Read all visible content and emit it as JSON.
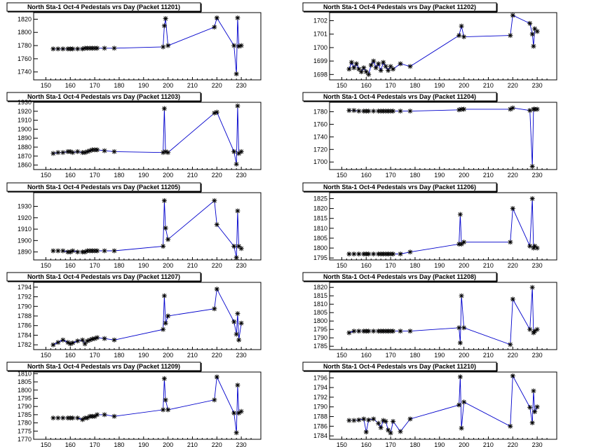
{
  "page": {
    "title": "North Sta-1 Oct-4 Pedestals vrs Day"
  },
  "colors": {
    "line": "#0000cc",
    "marker": "#000000",
    "axis": "#000000",
    "frame": "#000000"
  },
  "chart_data": [
    {
      "type": "line",
      "title": "North Sta-1 Oct-4 Pedestals vrs Day (Packet 11201)",
      "xlabel": "",
      "ylabel": "",
      "xlim": [
        145,
        238
      ],
      "ylim": [
        1728,
        1830
      ],
      "xticks": [
        150,
        160,
        170,
        180,
        190,
        200,
        210,
        220,
        230
      ],
      "yticks": [
        1740,
        1760,
        1780,
        1800,
        1820
      ],
      "series": [
        {
          "name": "pedestal",
          "x": [
            153,
            155,
            157,
            159,
            160,
            161,
            163,
            165,
            166,
            167,
            168,
            169,
            170,
            171,
            174,
            178,
            198,
            198.5,
            199,
            200,
            219,
            220,
            227,
            228,
            228.5,
            229,
            230
          ],
          "y": [
            1775,
            1775,
            1775,
            1775,
            1775,
            1775,
            1775,
            1775,
            1776,
            1776,
            1776,
            1776,
            1776,
            1776,
            1776,
            1776,
            1778,
            1810,
            1821,
            1780,
            1808,
            1822,
            1780,
            1737,
            1822,
            1779,
            1780
          ]
        }
      ]
    },
    {
      "type": "line",
      "title": "North Sta-1 Oct-4 Pedestals vrs Day (Packet 11202)",
      "xlabel": "",
      "ylabel": "",
      "xlim": [
        145,
        238
      ],
      "ylim": [
        1697.6,
        1702.6
      ],
      "xticks": [
        150,
        160,
        170,
        180,
        190,
        200,
        210,
        220,
        230
      ],
      "yticks": [
        1698,
        1699,
        1700,
        1701,
        1702
      ],
      "series": [
        {
          "name": "pedestal",
          "x": [
            153,
            154,
            155,
            156,
            157,
            158,
            159,
            160,
            161,
            162,
            163,
            164,
            165,
            166,
            167,
            168,
            169,
            170,
            171,
            174,
            178,
            198,
            199,
            200,
            219,
            220,
            227,
            228,
            228.5,
            229,
            230
          ],
          "y": [
            1698.4,
            1698.9,
            1698.5,
            1698.8,
            1698.4,
            1698.2,
            1698.5,
            1698.2,
            1698.0,
            1698.7,
            1699.0,
            1698.5,
            1698.8,
            1698.3,
            1698.9,
            1698.6,
            1698.3,
            1698.6,
            1698.4,
            1698.8,
            1698.6,
            1700.9,
            1701.6,
            1700.8,
            1700.9,
            1702.4,
            1701.8,
            1701.0,
            1700.1,
            1701.4,
            1701.2
          ]
        }
      ]
    },
    {
      "type": "line",
      "title": "North Sta-1 Oct-4 Pedestals vrs Day (Packet 11203)",
      "xlabel": "",
      "ylabel": "",
      "xlim": [
        145,
        238
      ],
      "ylim": [
        1855,
        1930
      ],
      "xticks": [
        150,
        160,
        170,
        180,
        190,
        200,
        210,
        220,
        230
      ],
      "yticks": [
        1860,
        1870,
        1880,
        1890,
        1900,
        1910,
        1920,
        1930
      ],
      "series": [
        {
          "name": "pedestal",
          "x": [
            153,
            155,
            157,
            159,
            160,
            161,
            163,
            165,
            166,
            167,
            168,
            169,
            170,
            171,
            174,
            178,
            198,
            198.5,
            199,
            200,
            219,
            220,
            227,
            228,
            228.5,
            229,
            230
          ],
          "y": [
            1873,
            1874,
            1874,
            1875,
            1875,
            1874,
            1875,
            1874,
            1874,
            1875,
            1876,
            1877,
            1877,
            1877,
            1876,
            1875,
            1874,
            1923,
            1875,
            1874,
            1918,
            1919,
            1875,
            1861,
            1926,
            1873,
            1875
          ]
        }
      ]
    },
    {
      "type": "line",
      "title": "North Sta-1 Oct-4 Pedestals vrs Day (Packet 11204)",
      "xlabel": "",
      "ylabel": "",
      "xlim": [
        145,
        238
      ],
      "ylim": [
        1688,
        1795
      ],
      "xticks": [
        150,
        160,
        170,
        180,
        190,
        200,
        210,
        220,
        230
      ],
      "yticks": [
        1700,
        1720,
        1740,
        1760,
        1780
      ],
      "series": [
        {
          "name": "pedestal",
          "x": [
            153,
            155,
            157,
            159,
            160,
            161,
            163,
            165,
            166,
            167,
            168,
            169,
            170,
            171,
            174,
            178,
            198,
            199,
            200,
            219,
            220,
            227,
            228,
            228.5,
            229,
            230
          ],
          "y": [
            1782,
            1782,
            1781,
            1781,
            1781,
            1781,
            1781,
            1781,
            1781,
            1781,
            1781,
            1781,
            1781,
            1781,
            1781,
            1781,
            1783,
            1784,
            1784,
            1784,
            1786,
            1782,
            1693,
            1784,
            1784,
            1784
          ]
        }
      ]
    },
    {
      "type": "line",
      "title": "North Sta-1 Oct-4 Pedestals vrs Day (Packet 11205)",
      "xlabel": "",
      "ylabel": "",
      "xlim": [
        145,
        238
      ],
      "ylim": [
        1883,
        1942
      ],
      "xticks": [
        150,
        160,
        170,
        180,
        190,
        200,
        210,
        220,
        230
      ],
      "yticks": [
        1890,
        1900,
        1910,
        1920,
        1930
      ],
      "series": [
        {
          "name": "pedestal",
          "x": [
            153,
            155,
            157,
            159,
            160,
            161,
            163,
            165,
            166,
            167,
            168,
            169,
            170,
            171,
            174,
            178,
            198,
            198.5,
            199,
            200,
            219,
            220,
            227,
            228,
            228.5,
            229,
            230
          ],
          "y": [
            1891,
            1891,
            1891,
            1890,
            1890,
            1891,
            1890,
            1890,
            1890,
            1891,
            1891,
            1891,
            1891,
            1891,
            1891,
            1891,
            1895,
            1935,
            1911,
            1901,
            1935,
            1914,
            1895,
            1885,
            1926,
            1895,
            1893
          ]
        }
      ]
    },
    {
      "type": "line",
      "title": "North Sta-1 Oct-4 Pedestals vrs Day (Packet 11206)",
      "xlabel": "",
      "ylabel": "",
      "xlim": [
        145,
        238
      ],
      "ylim": [
        1794,
        1828
      ],
      "xticks": [
        150,
        160,
        170,
        180,
        190,
        200,
        210,
        220,
        230
      ],
      "yticks": [
        1795,
        1800,
        1805,
        1810,
        1815,
        1820,
        1825
      ],
      "series": [
        {
          "name": "pedestal",
          "x": [
            153,
            155,
            157,
            159,
            160,
            161,
            163,
            165,
            166,
            167,
            168,
            169,
            170,
            171,
            174,
            178,
            198,
            198.5,
            199,
            200,
            219,
            220,
            227,
            228,
            228.5,
            229,
            230
          ],
          "y": [
            1797,
            1797,
            1797,
            1797,
            1797,
            1797,
            1797,
            1797,
            1797,
            1797,
            1797,
            1797,
            1797,
            1797,
            1797,
            1798,
            1802,
            1817,
            1802,
            1803,
            1803,
            1820,
            1801,
            1825,
            1800,
            1801,
            1800
          ]
        }
      ]
    },
    {
      "type": "line",
      "title": "North Sta-1 Oct-4 Pedestals vrs Day (Packet 11207)",
      "xlabel": "",
      "ylabel": "",
      "xlim": [
        145,
        238
      ],
      "ylim": [
        1781,
        1795
      ],
      "xticks": [
        150,
        160,
        170,
        180,
        190,
        200,
        210,
        220,
        230
      ],
      "yticks": [
        1782,
        1784,
        1786,
        1788,
        1790,
        1792,
        1794
      ],
      "series": [
        {
          "name": "pedestal",
          "x": [
            153,
            155,
            157,
            159,
            160,
            161,
            163,
            165,
            166,
            167,
            168,
            169,
            170,
            171,
            174,
            178,
            198,
            198.5,
            199,
            200,
            219,
            220,
            227,
            228,
            228.5,
            229,
            230
          ],
          "y": [
            1782,
            1782.5,
            1783,
            1782.5,
            1782.2,
            1782.4,
            1782.8,
            1783,
            1782.2,
            1782.8,
            1783,
            1783.2,
            1783.3,
            1783.5,
            1783.3,
            1783,
            1785.2,
            1792.2,
            1786.5,
            1788,
            1789.5,
            1793.6,
            1786.8,
            1784.2,
            1788.5,
            1783,
            1786.5
          ]
        }
      ]
    },
    {
      "type": "line",
      "title": "North Sta-1 Oct-4 Pedestals vrs Day (Packet 11208)",
      "xlabel": "",
      "ylabel": "",
      "xlim": [
        145,
        238
      ],
      "ylim": [
        1783,
        1823
      ],
      "xticks": [
        150,
        160,
        170,
        180,
        190,
        200,
        210,
        220,
        230
      ],
      "yticks": [
        1785,
        1790,
        1795,
        1800,
        1805,
        1810,
        1815,
        1820
      ],
      "series": [
        {
          "name": "pedestal",
          "x": [
            153,
            155,
            157,
            159,
            160,
            161,
            163,
            165,
            166,
            167,
            168,
            169,
            170,
            171,
            174,
            178,
            198,
            198.5,
            199,
            200,
            219,
            220,
            227,
            228,
            228.5,
            229,
            230
          ],
          "y": [
            1793,
            1794,
            1794,
            1794,
            1794,
            1794,
            1794,
            1794,
            1794,
            1794,
            1794,
            1794,
            1794,
            1794,
            1794,
            1794,
            1796,
            1787,
            1815,
            1796,
            1786,
            1813,
            1795,
            1820,
            1793,
            1794,
            1795
          ]
        }
      ]
    },
    {
      "type": "line",
      "title": "North Sta-1 Oct-4 Pedestals vrs Day (Packet 11209)",
      "xlabel": "",
      "ylabel": "",
      "xlim": [
        145,
        238
      ],
      "ylim": [
        1770,
        1811
      ],
      "xticks": [
        150,
        160,
        170,
        180,
        190,
        200,
        210,
        220,
        230
      ],
      "yticks": [
        1770,
        1775,
        1780,
        1785,
        1790,
        1795,
        1800,
        1805,
        1810
      ],
      "series": [
        {
          "name": "pedestal",
          "x": [
            153,
            155,
            157,
            159,
            160,
            161,
            163,
            165,
            166,
            167,
            168,
            169,
            170,
            171,
            174,
            178,
            198,
            198.5,
            199,
            200,
            219,
            220,
            227,
            228,
            228.5,
            229,
            230
          ],
          "y": [
            1783,
            1783,
            1783,
            1783,
            1783,
            1783,
            1783,
            1782,
            1783,
            1783,
            1784,
            1784,
            1784,
            1785,
            1785,
            1784,
            1788,
            1807,
            1794,
            1788,
            1794,
            1808,
            1786,
            1774,
            1803,
            1786,
            1787
          ]
        }
      ]
    },
    {
      "type": "line",
      "title": "North Sta-1 Oct-4 Pedestals vrs Day (Packet 11210)",
      "xlabel": "",
      "ylabel": "",
      "xlim": [
        145,
        238
      ],
      "ylim": [
        1783.3,
        1797.2
      ],
      "xticks": [
        150,
        160,
        170,
        180,
        190,
        200,
        210,
        220,
        230
      ],
      "yticks": [
        1784,
        1786,
        1788,
        1790,
        1792,
        1794,
        1796
      ],
      "series": [
        {
          "name": "pedestal",
          "x": [
            153,
            155,
            157,
            159,
            160,
            161,
            163,
            165,
            166,
            167,
            168,
            169,
            170,
            171,
            174,
            178,
            198,
            198.5,
            199,
            200,
            219,
            220,
            227,
            228,
            228.5,
            229,
            230
          ],
          "y": [
            1787.2,
            1787.2,
            1787.3,
            1787.5,
            1784.8,
            1787.3,
            1787.5,
            1786.6,
            1785.7,
            1787.2,
            1787,
            1785.2,
            1784.6,
            1787,
            1784.9,
            1787.5,
            1790.4,
            1796.2,
            1785.6,
            1791,
            1786,
            1796.4,
            1789.9,
            1786.7,
            1793.3,
            1789,
            1790
          ]
        }
      ]
    }
  ]
}
